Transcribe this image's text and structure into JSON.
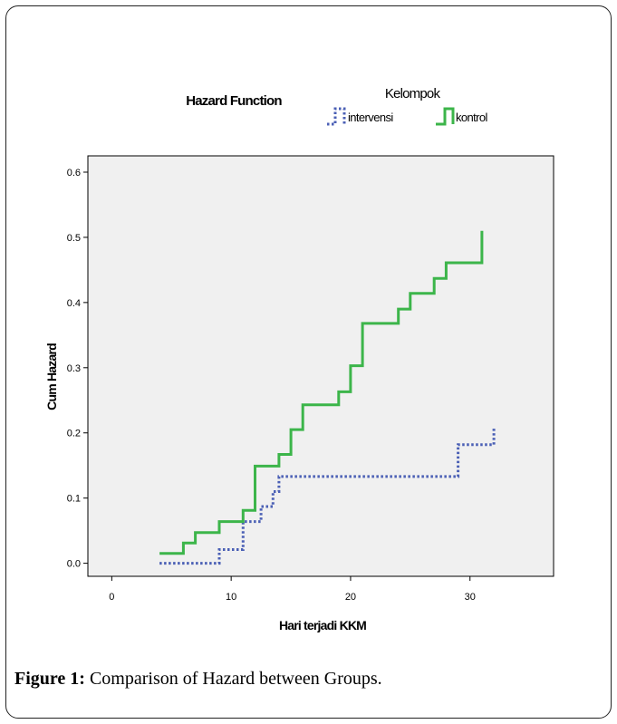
{
  "chart_data": {
    "type": "line",
    "step": true,
    "title": "Hazard Function",
    "legend_title": "Kelompok",
    "legend_position": "top-right",
    "xlabel": "Hari terjadi KKM",
    "ylabel": "Cum Hazard",
    "xlim": [
      -2,
      37
    ],
    "ylim": [
      -0.02,
      0.625
    ],
    "xticks": [
      0,
      10,
      20,
      30
    ],
    "yticks": [
      0.0,
      0.1,
      0.2,
      0.3,
      0.4,
      0.5,
      0.6
    ],
    "xtick_labels": [
      "0",
      "10",
      "20",
      "30"
    ],
    "ytick_labels": [
      "0.0",
      "0.1",
      "0.2",
      "0.3",
      "0.4",
      "0.5",
      "0.6"
    ],
    "grid": false,
    "series": [
      {
        "name": "intervensi",
        "color": "#4a5fb5",
        "dash": "dotted",
        "points": [
          [
            4,
            0.0
          ],
          [
            9,
            0.0
          ],
          [
            9,
            0.021
          ],
          [
            11,
            0.021
          ],
          [
            11,
            0.064
          ],
          [
            12.5,
            0.064
          ],
          [
            12.5,
            0.087
          ],
          [
            13.5,
            0.087
          ],
          [
            13.5,
            0.11
          ],
          [
            14,
            0.11
          ],
          [
            14,
            0.133
          ],
          [
            29,
            0.133
          ],
          [
            29,
            0.182
          ],
          [
            32,
            0.182
          ],
          [
            32,
            0.207
          ]
        ]
      },
      {
        "name": "kontrol",
        "color": "#3cb54a",
        "dash": "solid",
        "points": [
          [
            4,
            0.015
          ],
          [
            6,
            0.015
          ],
          [
            6,
            0.031
          ],
          [
            7,
            0.031
          ],
          [
            7,
            0.047
          ],
          [
            9,
            0.047
          ],
          [
            9,
            0.064
          ],
          [
            11,
            0.064
          ],
          [
            11,
            0.081
          ],
          [
            12,
            0.081
          ],
          [
            12,
            0.149
          ],
          [
            14,
            0.149
          ],
          [
            14,
            0.167
          ],
          [
            15,
            0.167
          ],
          [
            15,
            0.205
          ],
          [
            16,
            0.205
          ],
          [
            16,
            0.243
          ],
          [
            19,
            0.243
          ],
          [
            19,
            0.263
          ],
          [
            20,
            0.263
          ],
          [
            20,
            0.303
          ],
          [
            21,
            0.303
          ],
          [
            21,
            0.368
          ],
          [
            24,
            0.368
          ],
          [
            24,
            0.39
          ],
          [
            25,
            0.39
          ],
          [
            25,
            0.414
          ],
          [
            27,
            0.414
          ],
          [
            27,
            0.437
          ],
          [
            28,
            0.437
          ],
          [
            28,
            0.461
          ],
          [
            31,
            0.461
          ],
          [
            31,
            0.51
          ]
        ]
      }
    ]
  },
  "caption": {
    "label": "Figure 1:",
    "text": " Comparison of Hazard between Groups."
  }
}
